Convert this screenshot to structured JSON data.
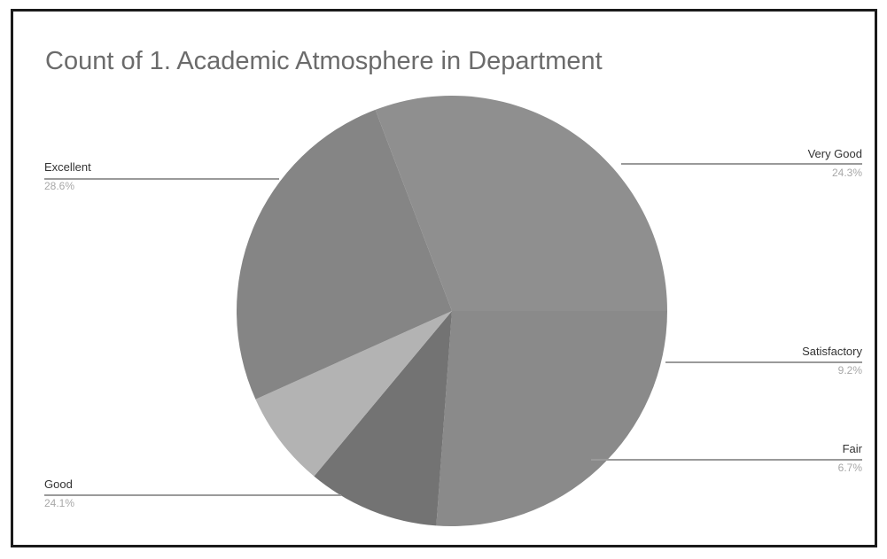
{
  "chart_data": {
    "type": "pie",
    "title": "Count of 1. Academic Atmosphere in Department",
    "slices": [
      {
        "name": "Very Good",
        "label": "Very Good",
        "pct_label": "24.3%",
        "value": 24.3,
        "color": "#8a8a8a"
      },
      {
        "name": "Satisfactory",
        "label": "Satisfactory",
        "pct_label": "9.2%",
        "value": 9.2,
        "color": "#737373"
      },
      {
        "name": "Fair",
        "label": "Fair",
        "pct_label": "6.7%",
        "value": 6.7,
        "color": "#b3b3b3"
      },
      {
        "name": "Good",
        "label": "Good",
        "pct_label": "24.1%",
        "value": 24.1,
        "color": "#858585"
      },
      {
        "name": "Excellent",
        "label": "Excellent",
        "pct_label": "28.6%",
        "value": 28.6,
        "color": "#8f8f8f"
      }
    ],
    "legend": "none"
  }
}
